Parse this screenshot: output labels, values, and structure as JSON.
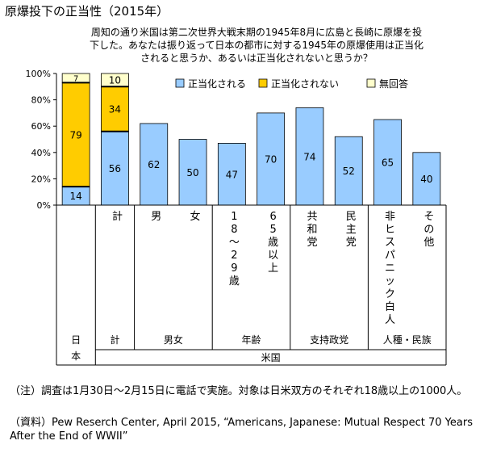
{
  "title": "原爆投下の正当性（2015年）",
  "chart_data": {
    "type": "bar",
    "stacked": true,
    "question": [
      "周知の通り米国は第二次世界大戦末期の1945年8月に広島と長崎に原爆を投",
      "下した。あなたは振り返って日本の都市に対する1945年の原爆使用は正当化",
      "されると思うか、あるいは正当化されないと思うか？"
    ],
    "ylim": [
      0,
      100
    ],
    "yticks": [
      "0%",
      "20%",
      "40%",
      "60%",
      "80%",
      "100%"
    ],
    "grid": false,
    "legend_position": "top-right",
    "series": [
      {
        "name": "正当化される",
        "color": "#99ccff",
        "values": [
          14,
          56,
          62,
          50,
          47,
          70,
          74,
          52,
          65,
          40
        ]
      },
      {
        "name": "正当化されない",
        "color": "#ffcc00",
        "values": [
          79,
          34,
          null,
          null,
          null,
          null,
          null,
          null,
          null,
          null
        ]
      },
      {
        "name": "無回答",
        "color": "#ffffcc",
        "values": [
          7,
          10,
          null,
          null,
          null,
          null,
          null,
          null,
          null,
          null
        ]
      }
    ],
    "categories": [
      [
        "日",
        "本"
      ],
      [
        "計"
      ],
      [
        "男"
      ],
      [
        "女"
      ],
      [
        "1",
        "8",
        "～",
        "2",
        "9",
        "歳"
      ],
      [
        "6",
        "5",
        "歳",
        "以",
        "上"
      ],
      [
        "共",
        "和",
        "党"
      ],
      [
        "民",
        "主",
        "党"
      ],
      [
        "非",
        "ヒ",
        "ス",
        "パ",
        "ニ",
        "ッ",
        "ク",
        "白",
        "人"
      ],
      [
        "そ",
        "の",
        "他"
      ]
    ],
    "group_labels": [
      {
        "label": "日",
        "label2": "本"
      },
      {
        "label": "計"
      },
      {
        "label": "男女"
      },
      {
        "label": "年齢"
      },
      {
        "label": "支持政党"
      },
      {
        "label": "人種・民族"
      }
    ],
    "country_label": "米国"
  },
  "notes": {
    "note": "（注）調査は1月30日～2月15日に電話で実施。対象は日米双方のそれぞれ18歳以上の1000人。",
    "source": "（資料）Pew Reserch Center, April 2015, “Americans, Japanese: Mutual Respect 70 Years After the End of WWII”"
  }
}
